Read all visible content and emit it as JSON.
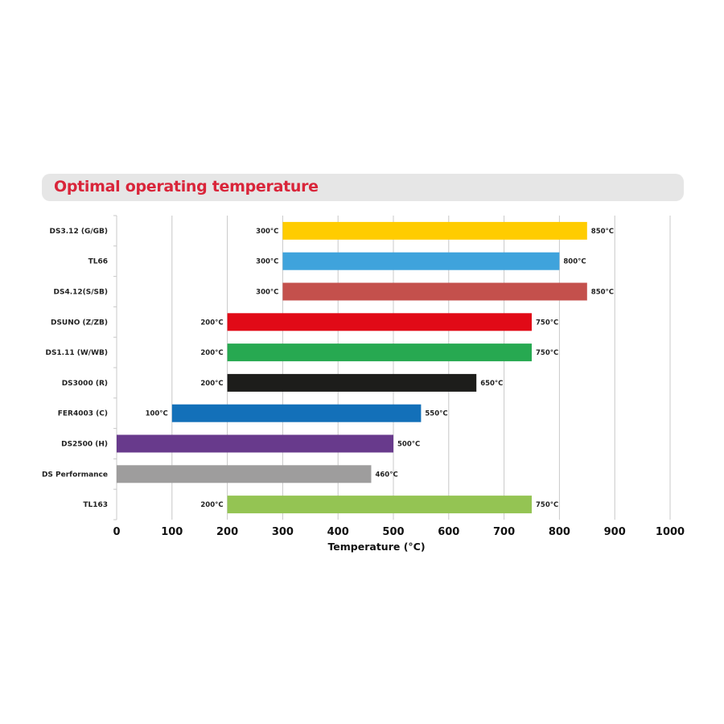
{
  "chart_data": {
    "type": "bar",
    "orientation": "horizontal",
    "title": "Optimal operating temperature",
    "xlabel": "Temperature (°C)",
    "ylabel": "",
    "xlim": [
      0,
      1000
    ],
    "xticks": [
      0,
      100,
      200,
      300,
      400,
      500,
      600,
      700,
      800,
      900,
      1000
    ],
    "grid": "vertical",
    "categories": [
      "DS3.12 (G/GB)",
      "TL66",
      "DS4.12(S/SB)",
      "DSUNO (Z/ZB)",
      "DS1.11 (W/WB)",
      "DS3000 (R)",
      "FER4003 (C)",
      "DS2500 (H)",
      "DS Performance",
      "TL163"
    ],
    "ranges": [
      {
        "start": 300,
        "end": 850,
        "start_label": "300°C",
        "end_label": "850°C",
        "color": "#ffcc00"
      },
      {
        "start": 300,
        "end": 800,
        "start_label": "300°C",
        "end_label": "800°C",
        "color": "#3fa3dc"
      },
      {
        "start": 300,
        "end": 850,
        "start_label": "300°C",
        "end_label": "850°C",
        "color": "#c4504c"
      },
      {
        "start": 200,
        "end": 750,
        "start_label": "200°C",
        "end_label": "750°C",
        "color": "#e10a17"
      },
      {
        "start": 200,
        "end": 750,
        "start_label": "200°C",
        "end_label": "750°C",
        "color": "#27a951"
      },
      {
        "start": 200,
        "end": 650,
        "start_label": "200°C",
        "end_label": "650°C",
        "color": "#1d1d1b"
      },
      {
        "start": 100,
        "end": 550,
        "start_label": "100°C",
        "end_label": "550°C",
        "color": "#1370b9"
      },
      {
        "start": 0,
        "end": 500,
        "start_label": "",
        "end_label": "500°C",
        "color": "#683a8c"
      },
      {
        "start": 0,
        "end": 460,
        "start_label": "",
        "end_label": "460°C",
        "color": "#9e9d9d"
      },
      {
        "start": 200,
        "end": 750,
        "start_label": "200°C",
        "end_label": "750°C",
        "color": "#94c453"
      }
    ],
    "title_color": "#d9253a"
  }
}
